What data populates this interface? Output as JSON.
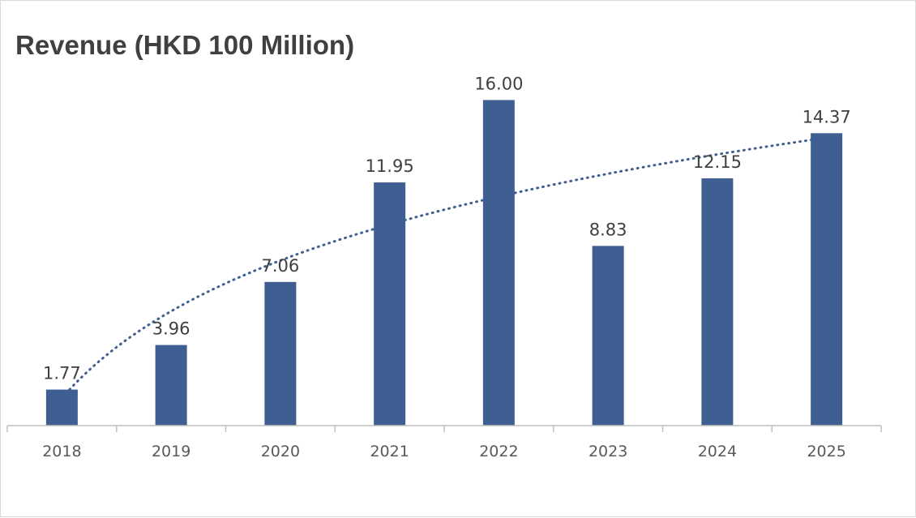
{
  "chart_data": {
    "type": "bar",
    "title": "Revenue (HKD 100 Million)",
    "categories": [
      "2018",
      "2019",
      "2020",
      "2021",
      "2022",
      "2023",
      "2024",
      "2025"
    ],
    "series": [
      {
        "values": [
          1.77,
          3.96,
          7.06,
          11.95,
          16.0,
          8.83,
          12.15,
          14.37
        ],
        "data_labels": [
          "1.77",
          "3.96",
          "7.06",
          "11.95",
          "16.00",
          "8.83",
          "12.15",
          "14.37"
        ]
      }
    ],
    "trendline": {
      "type": "logarithmic",
      "style": "dotted"
    },
    "xlabel": "",
    "ylabel": "",
    "ylim": [
      0,
      16.8
    ],
    "grid": false,
    "legend": "none",
    "colors": {
      "bar": "#3f5f93",
      "trendline": "#3f5f93",
      "axis": "#bfbfbf"
    }
  }
}
